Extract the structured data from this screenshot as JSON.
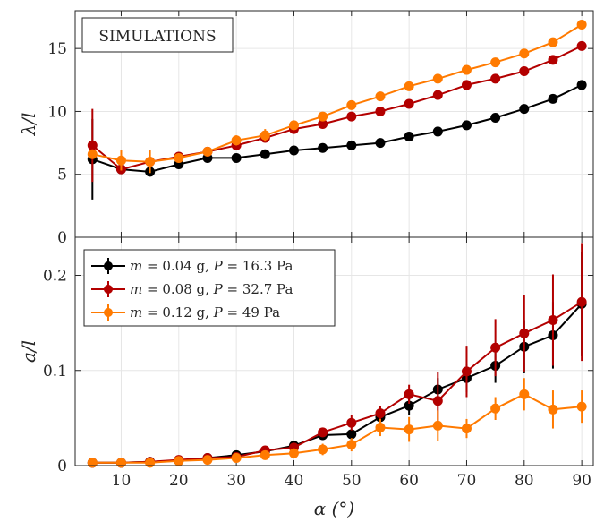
{
  "chart_data": [
    {
      "type": "line",
      "panel": "top",
      "annotation": "SIMULATIONS",
      "ylabel": "λ/l",
      "xlabel": "",
      "xlim": [
        2,
        92
      ],
      "ylim": [
        0,
        18
      ],
      "xticks": [
        10,
        20,
        30,
        40,
        50,
        60,
        70,
        80,
        90
      ],
      "yticks": [
        0,
        5,
        10,
        15
      ],
      "ytick_labels": [
        "0",
        "5",
        "10",
        "15"
      ],
      "grid": true,
      "x": [
        5,
        10,
        15,
        20,
        25,
        30,
        35,
        40,
        45,
        50,
        55,
        60,
        65,
        70,
        75,
        80,
        85,
        90
      ],
      "series": [
        {
          "color": "#000000",
          "values": [
            6.2,
            5.4,
            5.2,
            5.8,
            6.3,
            6.3,
            6.6,
            6.9,
            7.1,
            7.3,
            7.5,
            8.0,
            8.4,
            8.9,
            9.5,
            10.2,
            11.0,
            12.1
          ],
          "errors": [
            3.2,
            0,
            0,
            0,
            0,
            0,
            0,
            0,
            0,
            0,
            0,
            0,
            0,
            0,
            0,
            0,
            0,
            0
          ]
        },
        {
          "color": "#b30000",
          "values": [
            7.3,
            5.4,
            6.0,
            6.4,
            6.8,
            7.3,
            7.9,
            8.6,
            9.0,
            9.6,
            10.0,
            10.6,
            11.3,
            12.1,
            12.6,
            13.2,
            14.1,
            15.2
          ],
          "errors": [
            2.9,
            0,
            0,
            0,
            0,
            0,
            0,
            0,
            0,
            0,
            0,
            0,
            0,
            0,
            0,
            0,
            0,
            0
          ]
        },
        {
          "color": "#ff7a00",
          "values": [
            6.6,
            6.1,
            6.0,
            6.3,
            6.8,
            7.7,
            8.1,
            8.9,
            9.6,
            10.5,
            11.2,
            12.0,
            12.6,
            13.3,
            13.9,
            14.6,
            15.5,
            16.9
          ],
          "errors": [
            0,
            0.8,
            0.9,
            0,
            0,
            0.4,
            0.5,
            0,
            0,
            0,
            0,
            0,
            0,
            0,
            0,
            0,
            0,
            0
          ]
        }
      ]
    },
    {
      "type": "line",
      "panel": "bottom",
      "ylabel": "a/l",
      "xlabel": "α (°)",
      "xlim": [
        2,
        92
      ],
      "ylim": [
        0,
        0.24
      ],
      "xticks": [
        10,
        20,
        30,
        40,
        50,
        60,
        70,
        80,
        90
      ],
      "xtick_labels": [
        "10",
        "20",
        "30",
        "40",
        "50",
        "60",
        "70",
        "80",
        "90"
      ],
      "yticks": [
        0,
        0.1,
        0.2
      ],
      "ytick_labels": [
        "0",
        "0.1",
        "0.2"
      ],
      "grid": true,
      "legend_position": "top-left",
      "x": [
        5,
        10,
        15,
        20,
        25,
        30,
        35,
        40,
        45,
        50,
        55,
        60,
        65,
        70,
        75,
        80,
        85,
        90
      ],
      "series": [
        {
          "color": "#000000",
          "legend": {
            "m_var": "m",
            "m_value": "= 0.04 g,",
            "p_var": "P",
            "p_value": "= 16.3 Pa"
          },
          "values": [
            0.003,
            0.003,
            0.004,
            0.005,
            0.008,
            0.011,
            0.015,
            0.021,
            0.032,
            0.033,
            0.051,
            0.063,
            0.08,
            0.092,
            0.105,
            0.125,
            0.137,
            0.17
          ],
          "errors": [
            0.002,
            0.002,
            0.002,
            0.002,
            0.003,
            0.003,
            0.004,
            0.005,
            0.005,
            0.005,
            0.008,
            0.01,
            0.012,
            0.015,
            0.018,
            0.028,
            0.035,
            0.055
          ]
        },
        {
          "color": "#b30000",
          "legend": {
            "m_var": "m",
            "m_value": "= 0.08 g,",
            "p_var": "P",
            "p_value": "= 32.7 Pa"
          },
          "values": [
            0.003,
            0.003,
            0.004,
            0.006,
            0.008,
            0.009,
            0.016,
            0.019,
            0.035,
            0.045,
            0.055,
            0.075,
            0.068,
            0.099,
            0.124,
            0.139,
            0.153,
            0.172
          ],
          "errors": [
            0.002,
            0.002,
            0.002,
            0.002,
            0.003,
            0.003,
            0.004,
            0.005,
            0.005,
            0.008,
            0.008,
            0.01,
            0.03,
            0.027,
            0.03,
            0.04,
            0.048,
            0.062
          ]
        },
        {
          "color": "#ff7a00",
          "legend": {
            "m_var": "m",
            "m_value": "= 0.12 g,",
            "p_var": "P",
            "p_value": "= 49 Pa"
          },
          "values": [
            0.003,
            0.003,
            0.003,
            0.005,
            0.006,
            0.008,
            0.011,
            0.013,
            0.017,
            0.022,
            0.04,
            0.038,
            0.042,
            0.039,
            0.06,
            0.075,
            0.059,
            0.062
          ],
          "errors": [
            0.002,
            0.002,
            0.002,
            0.002,
            0.002,
            0.003,
            0.004,
            0.004,
            0.006,
            0.007,
            0.009,
            0.013,
            0.016,
            0.01,
            0.012,
            0.017,
            0.02,
            0.017
          ]
        }
      ]
    }
  ]
}
